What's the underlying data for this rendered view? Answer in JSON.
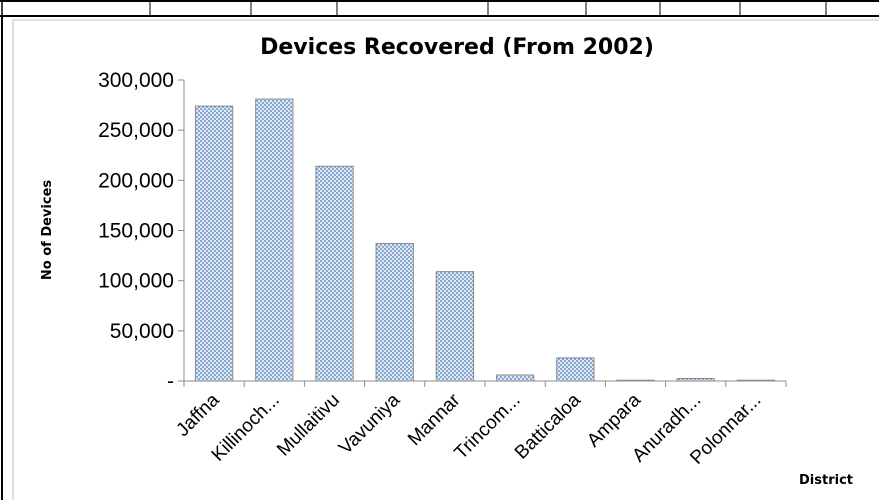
{
  "chart_data": {
    "type": "bar",
    "title": "Devices Recovered (From 2002)",
    "xlabel": "District",
    "ylabel": "No of Devices",
    "categories": [
      "Jaffna",
      "Killinoch...",
      "Mullaitivu",
      "Vavuniya",
      "Mannar",
      "Trincom...",
      "Batticaloa",
      "Ampara",
      "Anuradh...",
      "Polonnar..."
    ],
    "values": [
      274000,
      281000,
      214000,
      137000,
      109000,
      6000,
      23000,
      300,
      2500,
      300
    ],
    "ylim": [
      0,
      300000
    ],
    "yticks": [
      0,
      50000,
      100000,
      150000,
      200000,
      250000,
      300000
    ],
    "ytick_labels": [
      "-",
      "50,000",
      "100,000",
      "150,000",
      "200,000",
      "250,000",
      "300,000"
    ],
    "grid": false,
    "legend": "none",
    "bar_fill": "#dfe9f3",
    "bar_dot_color": "#4f7cb8",
    "bar_stroke": "#8c8c8c"
  }
}
